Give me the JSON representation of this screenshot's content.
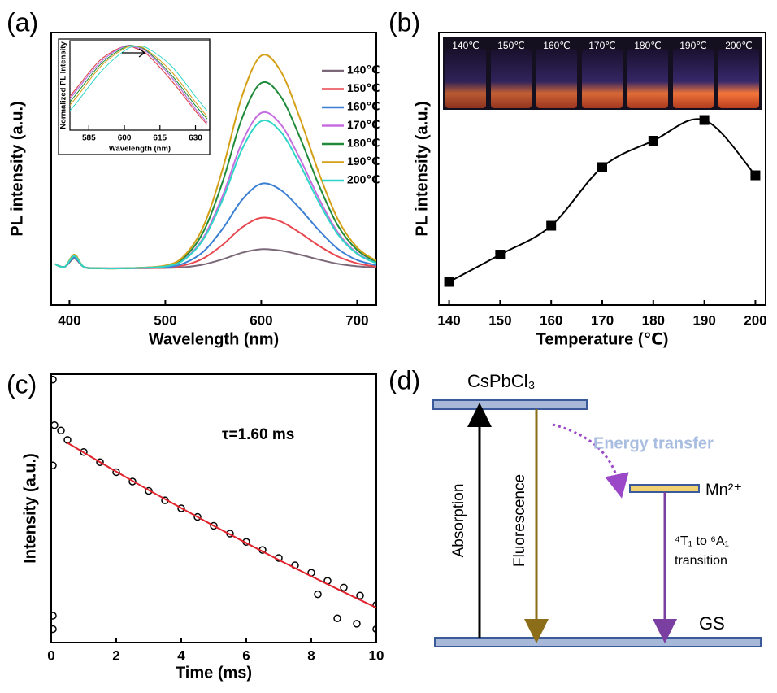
{
  "chart_data": [
    {
      "type": "line",
      "panel": "(a)",
      "xlabel": "Wavelength (nm)",
      "ylabel": "PL intensity (a.u.)",
      "xlim": [
        381,
        720
      ],
      "xticks": [
        400,
        500,
        600,
        700
      ],
      "ylim": [
        0,
        100
      ],
      "legend": "upper right",
      "x": [
        385,
        395,
        405,
        415,
        430,
        460,
        500,
        520,
        540,
        560,
        580,
        600,
        620,
        640,
        660,
        680,
        700,
        720
      ],
      "series": [
        {
          "name": "140℃",
          "color": "#7a6878",
          "values": [
            15,
            14,
            17,
            14,
            13.5,
            13.5,
            13.6,
            13.9,
            14.9,
            16.8,
            19.2,
            20.5,
            20,
            18.5,
            16.7,
            15.1,
            14.2,
            13.7
          ]
        },
        {
          "name": "150℃",
          "color": "#e8474f",
          "values": [
            15,
            14,
            17.5,
            14,
            13.5,
            13.5,
            13.7,
            14.6,
            17.2,
            22.2,
            28.5,
            32,
            30.7,
            26.6,
            21.8,
            17.8,
            15.3,
            14.1
          ]
        },
        {
          "name": "160℃",
          "color": "#3b7fd4",
          "values": [
            15,
            14,
            17.5,
            14,
            13.5,
            13.5,
            13.9,
            15.4,
            19.7,
            28.1,
            38.6,
            44.5,
            42.3,
            35.5,
            27.5,
            20.6,
            16.5,
            14.6
          ]
        },
        {
          "name": "170℃",
          "color": "#c66ee0",
          "values": [
            15,
            14,
            18,
            14,
            13.5,
            13.5,
            14.2,
            16.9,
            24.9,
            40.3,
            59.7,
            70.5,
            66.5,
            54,
            39.2,
            26.6,
            19.1,
            15.4
          ]
        },
        {
          "name": "180℃",
          "color": "#1f8a3a",
          "values": [
            15,
            14,
            18,
            14,
            13.5,
            13.5,
            14.4,
            17.6,
            27.1,
            45.5,
            68.6,
            81.5,
            76.7,
            61.8,
            44.1,
            29.1,
            20.2,
            15.8
          ]
        },
        {
          "name": "190℃",
          "color": "#d4a017",
          "values": [
            15,
            14,
            18.5,
            14,
            13.5,
            13.5,
            14.5,
            18.2,
            29.1,
            50.2,
            76.7,
            91.5,
            86,
            68.9,
            48.6,
            31.4,
            21.1,
            16.2
          ]
        },
        {
          "name": "200℃",
          "color": "#2fd6c8",
          "values": [
            15,
            14,
            18,
            14,
            13.5,
            13.5,
            14.2,
            16.7,
            24.3,
            38.9,
            57.2,
            67.5,
            63.7,
            51.8,
            37.8,
            25.9,
            18.8,
            15.3
          ]
        }
      ]
    },
    {
      "type": "line",
      "xlabel": "Wavelength (nm)",
      "ylabel": "Normalized PL Intensity",
      "xlim": [
        577,
        636
      ],
      "xticks": [
        585,
        600,
        615,
        630
      ],
      "ylim": [
        0.25,
        1.05
      ],
      "x": [
        572,
        580,
        590,
        600,
        605,
        610,
        620,
        630,
        635
      ],
      "series": [
        {
          "color": "#7a6878",
          "values": [
            0.42,
            0.63,
            0.88,
            1.0,
            0.98,
            0.92,
            0.69,
            0.42,
            0.3
          ]
        },
        {
          "color": "#e8474f",
          "values": [
            0.42,
            0.63,
            0.88,
            1.0,
            0.98,
            0.92,
            0.69,
            0.42,
            0.3
          ]
        },
        {
          "color": "#3b7fd4",
          "values": [
            0.39,
            0.61,
            0.86,
            1.0,
            0.99,
            0.94,
            0.72,
            0.44,
            0.32
          ]
        },
        {
          "color": "#c66ee0",
          "values": [
            0.39,
            0.61,
            0.86,
            1.0,
            0.99,
            0.94,
            0.72,
            0.44,
            0.32
          ]
        },
        {
          "color": "#1f8a3a",
          "values": [
            0.37,
            0.58,
            0.84,
            0.99,
            1.0,
            0.95,
            0.74,
            0.47,
            0.35
          ]
        },
        {
          "color": "#d4a017",
          "values": [
            0.35,
            0.55,
            0.82,
            0.98,
            1.0,
            0.96,
            0.77,
            0.5,
            0.37
          ]
        },
        {
          "color": "#2fd6c8",
          "values": [
            0.3,
            0.5,
            0.77,
            0.96,
            1.0,
            0.98,
            0.82,
            0.55,
            0.42
          ]
        }
      ]
    },
    {
      "type": "line",
      "panel": "(b)",
      "xlabel": "Temperature (℃)",
      "ylabel": "PL intensity (a.u.)",
      "xlim": [
        138,
        202
      ],
      "xticks": [
        140,
        150,
        160,
        170,
        180,
        190,
        200
      ],
      "ylim": [
        0,
        100
      ],
      "photo_labels": [
        "140℃",
        "150℃",
        "160℃",
        "170℃",
        "180℃",
        "190℃",
        "200℃"
      ],
      "x": [
        140,
        150,
        160,
        170,
        180,
        190,
        200
      ],
      "series": [
        {
          "color": "#000000",
          "marker": "square",
          "values": [
            8.5,
            18.5,
            29.1,
            50.6,
            60.3,
            67.9,
            47.6
          ]
        }
      ]
    },
    {
      "type": "scatter",
      "panel": "(c)",
      "xlabel": "Time (ms)",
      "ylabel": "Intensity (a.u.)",
      "annotation": "τ=1.60 ms",
      "xlim": [
        0,
        10
      ],
      "xticks": [
        0,
        2,
        4,
        6,
        8,
        10
      ],
      "ylim": [
        0,
        100
      ],
      "series": [
        {
          "color": "#000000",
          "marker": "circle",
          "x": [
            0.05,
            0.05,
            0.05,
            0.05,
            0.1,
            0.3,
            0.5,
            1,
            1.5,
            2,
            2.5,
            3,
            3.5,
            4,
            4.5,
            5,
            5.5,
            6,
            6.5,
            7,
            7.5,
            8,
            8.5,
            9,
            9.5,
            10,
            8.2,
            8.8,
            9.4,
            10
          ],
          "values": [
            98,
            66,
            10,
            5,
            81,
            79,
            75.5,
            71,
            67.2,
            63.5,
            60,
            56.5,
            53,
            50,
            46.8,
            43.5,
            40.6,
            37.5,
            34.5,
            31.5,
            28.8,
            26,
            23,
            20.5,
            17.5,
            14,
            18,
            9,
            7,
            5
          ]
        },
        {
          "color": "#e0202a",
          "marker": "none",
          "x": [
            0.5,
            1,
            2,
            3,
            4,
            5,
            6,
            7,
            8,
            9,
            10
          ],
          "values": [
            74.4,
            70.8,
            63.7,
            56.8,
            50.1,
            43.5,
            37.1,
            30.8,
            24.7,
            18.8,
            13
          ]
        }
      ]
    }
  ],
  "diagram": {
    "panel": "(d)",
    "top_level": "CsPbCl₃",
    "mn_level": "Mn²⁺",
    "ground": "GS",
    "energy_transfer": "Energy transfer",
    "absorption": "Absorption",
    "fluorescence": "Fluorescence",
    "transition": [
      "⁴T₁ to ⁶A₁",
      "transition"
    ]
  }
}
